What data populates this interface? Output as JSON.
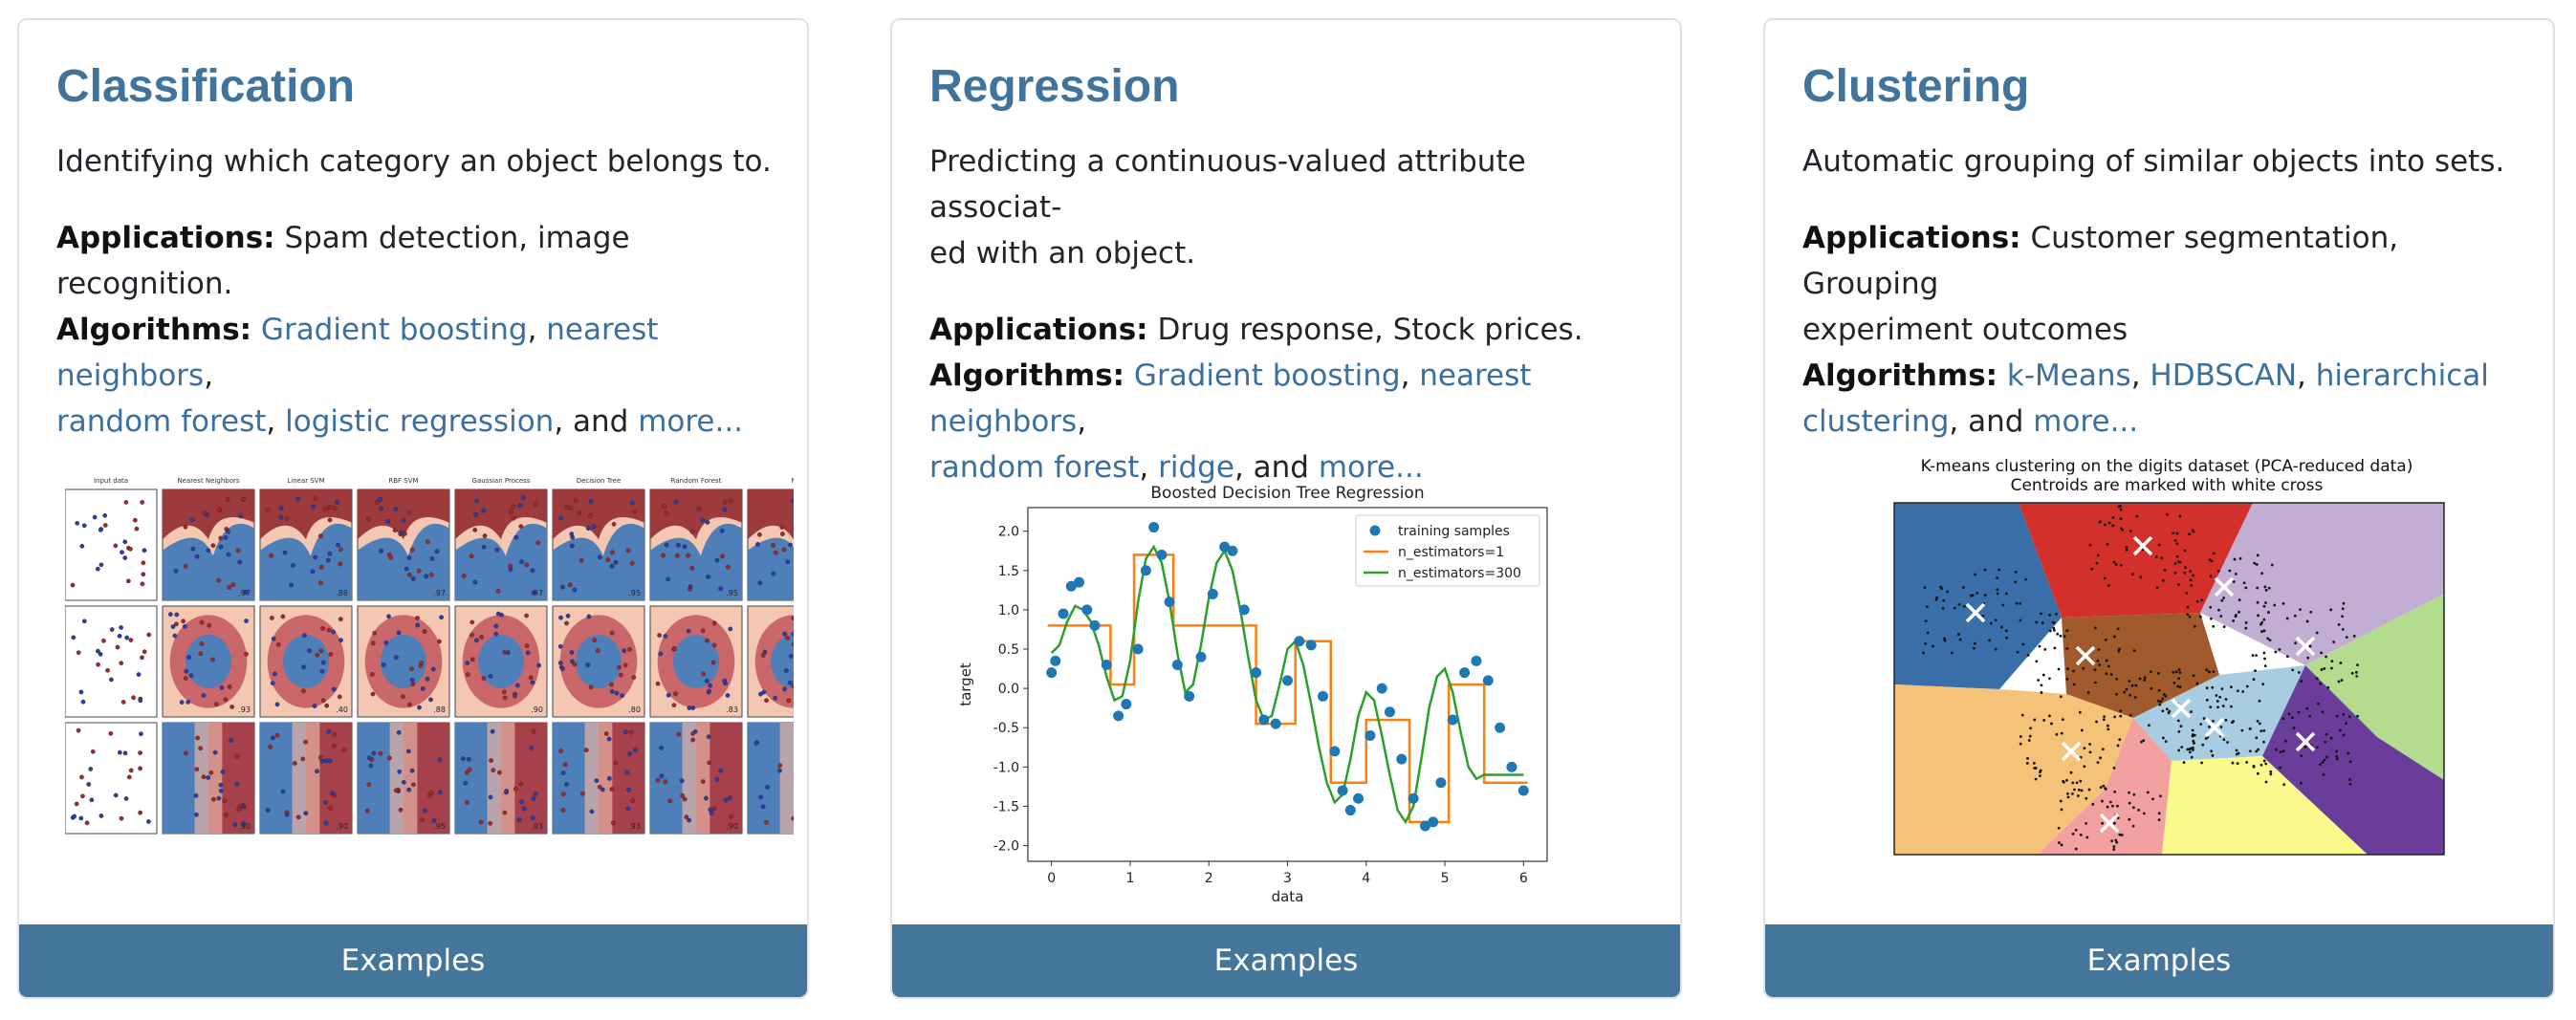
{
  "cards": [
    {
      "title": "Classification",
      "description": "Identifying which category an object belongs to.",
      "applications_label": "Applications:",
      "applications": " Spam detection, image recognition.",
      "algorithms_label": "Algorithms:",
      "links": [
        "Gradient boosting",
        "nearest neighbors",
        "random forest",
        "logistic regression",
        "more..."
      ],
      "connector": ", and ",
      "button": "Examples",
      "figure": {
        "column_titles": [
          "Input data",
          "Nearest Neighbors",
          "Linear SVM",
          "RBF SVM",
          "Gaussian Process",
          "Decision Tree",
          "Random Forest",
          "N"
        ],
        "scores": [
          [
            "",
            ".97",
            ".88",
            ".97",
            ".97",
            ".95",
            ".95",
            ""
          ],
          [
            "",
            ".93",
            ".40",
            ".88",
            ".90",
            ".80",
            ".83",
            ""
          ],
          [
            "",
            ".90",
            ".90",
            ".95",
            ".93",
            ".93",
            ".90",
            ""
          ]
        ]
      }
    },
    {
      "title": "Regression",
      "description": "Predicting a continuous-valued attribute associat-ed with an object.",
      "desc_line1": "Predicting a continuous-valued attribute associat-",
      "desc_line2": "ed with an object.",
      "applications_label": "Applications:",
      "applications": " Drug response, Stock prices.",
      "algorithms_label": "Algorithms:",
      "links": [
        "Gradient boosting",
        "nearest neighbors",
        "random forest",
        "ridge",
        "more..."
      ],
      "connector": ", and ",
      "button": "Examples",
      "chart_data": {
        "type": "scatter",
        "title": "Boosted Decision Tree Regression",
        "xlabel": "data",
        "ylabel": "target",
        "xlim": [
          -0.3,
          6.3
        ],
        "ylim": [
          -2.2,
          2.3
        ],
        "xticks": [
          "0",
          "1",
          "2",
          "3",
          "4",
          "5",
          "6"
        ],
        "yticks": [
          "2.0",
          "1.5",
          "1.0",
          "0.5",
          "0.0",
          "-0.5",
          "-1.0",
          "-1.5",
          "-2.0"
        ],
        "legend_position": "top-right",
        "series": [
          {
            "name": "training samples",
            "color": "#1f77b4",
            "x": [
              0.0,
              0.05,
              0.15,
              0.25,
              0.35,
              0.45,
              0.55,
              0.7,
              0.85,
              0.95,
              1.1,
              1.2,
              1.3,
              1.4,
              1.5,
              1.6,
              1.75,
              1.9,
              2.05,
              2.2,
              2.3,
              2.45,
              2.6,
              2.7,
              2.85,
              3.0,
              3.15,
              3.3,
              3.45,
              3.6,
              3.7,
              3.8,
              3.9,
              4.05,
              4.2,
              4.3,
              4.45,
              4.6,
              4.75,
              4.85,
              4.95,
              5.1,
              5.25,
              5.4,
              5.55,
              5.7,
              5.85,
              6.0
            ],
            "y": [
              0.2,
              0.35,
              0.95,
              1.3,
              1.35,
              1.0,
              0.8,
              0.3,
              -0.35,
              -0.2,
              0.5,
              1.5,
              2.05,
              1.7,
              1.1,
              0.3,
              -0.1,
              0.4,
              1.2,
              1.8,
              1.75,
              1.0,
              0.2,
              -0.4,
              -0.45,
              0.1,
              0.6,
              0.55,
              -0.1,
              -0.8,
              -1.3,
              -1.55,
              -1.4,
              -0.6,
              0.0,
              -0.3,
              -0.9,
              -1.4,
              -1.75,
              -1.7,
              -1.2,
              -0.4,
              0.2,
              0.35,
              0.1,
              -0.5,
              -1.0,
              -1.3
            ]
          },
          {
            "name": "n_estimators=1",
            "color": "#ff7f0e",
            "steps": [
              [
                -0.05,
                0.8
              ],
              [
                0.5,
                0.8
              ],
              [
                0.75,
                0.05
              ],
              [
                1.05,
                1.7
              ],
              [
                1.55,
                0.8
              ],
              [
                2.6,
                -0.45
              ],
              [
                3.1,
                0.6
              ],
              [
                3.55,
                -1.2
              ],
              [
                4.0,
                -0.4
              ],
              [
                4.55,
                -1.7
              ],
              [
                5.05,
                0.05
              ],
              [
                5.5,
                -1.2
              ],
              [
                6.05,
                -1.2
              ]
            ]
          },
          {
            "name": "n_estimators=300",
            "color": "#2ca02c",
            "x": [
              0.0,
              0.1,
              0.2,
              0.3,
              0.4,
              0.5,
              0.6,
              0.7,
              0.8,
              0.9,
              1.0,
              1.1,
              1.2,
              1.3,
              1.4,
              1.5,
              1.6,
              1.7,
              1.8,
              1.9,
              2.0,
              2.1,
              2.2,
              2.3,
              2.4,
              2.5,
              2.6,
              2.7,
              2.8,
              2.9,
              3.0,
              3.1,
              3.2,
              3.3,
              3.4,
              3.5,
              3.6,
              3.7,
              3.8,
              3.9,
              4.0,
              4.1,
              4.2,
              4.3,
              4.4,
              4.5,
              4.6,
              4.7,
              4.8,
              4.9,
              5.0,
              5.1,
              5.2,
              5.3,
              5.4,
              5.5,
              5.6,
              5.7,
              5.8,
              5.9,
              6.0
            ],
            "y": [
              0.45,
              0.55,
              0.85,
              1.05,
              1.0,
              0.85,
              0.55,
              0.15,
              -0.15,
              -0.1,
              0.35,
              1.1,
              1.65,
              1.8,
              1.6,
              1.1,
              0.45,
              -0.05,
              0.05,
              0.55,
              1.15,
              1.6,
              1.75,
              1.5,
              1.0,
              0.4,
              -0.15,
              -0.4,
              -0.35,
              0.05,
              0.5,
              0.6,
              0.3,
              -0.2,
              -0.75,
              -1.2,
              -1.45,
              -1.35,
              -0.9,
              -0.35,
              -0.05,
              -0.15,
              -0.6,
              -1.1,
              -1.55,
              -1.7,
              -1.5,
              -0.9,
              -0.25,
              0.15,
              0.25,
              -0.05,
              -0.55,
              -1.0,
              -1.15,
              -1.1,
              -1.1,
              -1.1,
              -1.1,
              -1.1,
              -1.1
            ]
          }
        ]
      }
    },
    {
      "title": "Clustering",
      "description": "Automatic grouping of similar objects into sets.",
      "applications_label": "Applications:",
      "applications": " Customer segmentation, Grouping experiment outcomes",
      "apps_line1": " Customer segmentation, Grouping",
      "apps_line2": "experiment outcomes",
      "algorithms_label": "Algorithms:",
      "links": [
        "k-Means",
        "HDBSCAN",
        "hierarchical clustering",
        "more..."
      ],
      "link3a": "hierarchical",
      "link3b": "clustering",
      "connector": ", and ",
      "button": "Examples",
      "figure": {
        "title1": "K-means clustering on the digits dataset (PCA-reduced data)",
        "title2": "Centroids are marked with white cross"
      }
    }
  ]
}
